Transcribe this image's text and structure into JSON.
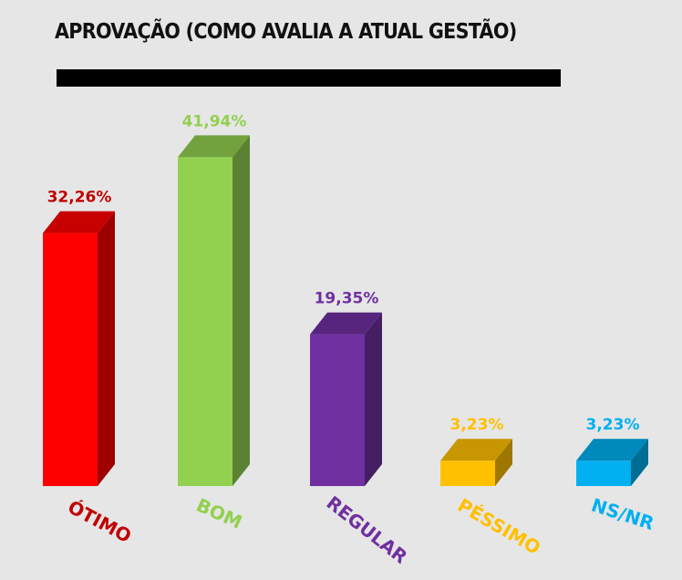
{
  "chart_data": {
    "type": "bar",
    "title": "APROVAÇÃO (COMO AVALIA A ATUAL GESTÃO)",
    "categories": [
      "ÓTIMO",
      "BOM",
      "REGULAR",
      "PÉSSIMO",
      "NS/NR"
    ],
    "values": [
      32.26,
      41.94,
      19.35,
      3.23,
      3.23
    ],
    "value_labels": [
      "32,26%",
      "41,94%",
      "19,35%",
      "3,23%",
      "3,23%"
    ],
    "colors": [
      "#ff0000",
      "#92d050",
      "#7030a0",
      "#ffc000",
      "#00b0f0"
    ],
    "label_colors": [
      "#c00000",
      "#92d050",
      "#7030a0",
      "#ffc000",
      "#00b0f0"
    ],
    "ylim": [
      0,
      45
    ],
    "grid": false,
    "legend": "none",
    "style": "3d-column"
  }
}
